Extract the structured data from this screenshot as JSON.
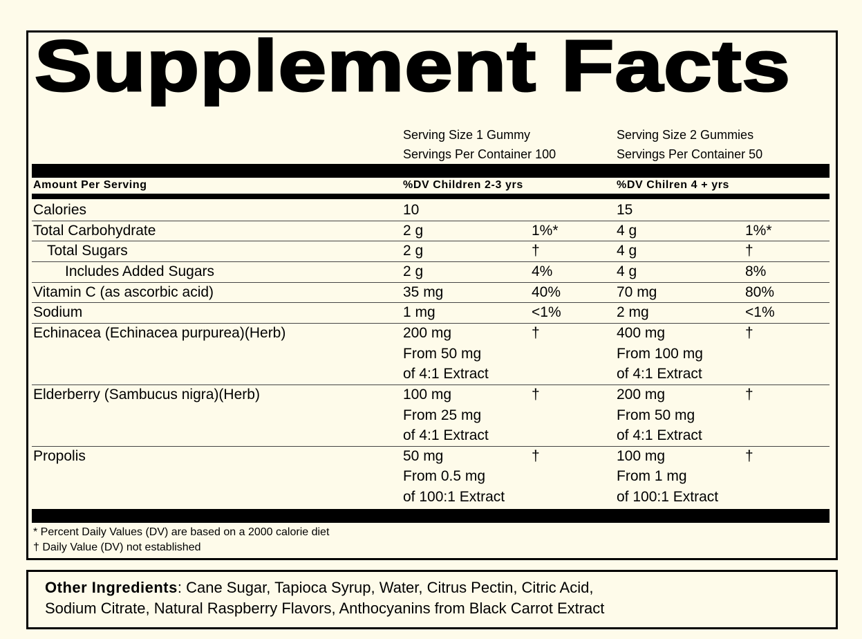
{
  "title": "Supplement Facts",
  "serving": [
    {
      "size": "Serving Size 1 Gummy",
      "per_container": "Servings Per Container 100"
    },
    {
      "size": "Serving Size 2 Gummies",
      "per_container": "Servings Per Container 50"
    }
  ],
  "header": {
    "amount": "Amount Per Serving",
    "col1": "%DV Children 2-3 yrs",
    "col2": "%DV Chilren 4 + yrs"
  },
  "rows": [
    {
      "name": "Calories",
      "c1": [
        "10"
      ],
      "c2": [
        "15"
      ]
    },
    {
      "name": "Total Carbohydrate",
      "c1": [
        "2 g"
      ],
      "dv1": "1%*",
      "c2": [
        "4 g"
      ],
      "dv2": "1%*"
    },
    {
      "name": "Total Sugars",
      "c1": [
        "2 g"
      ],
      "dv1": "†",
      "c2": [
        "4 g"
      ],
      "dv2": "†"
    },
    {
      "name": "Includes Added Sugars",
      "c1": [
        "2 g"
      ],
      "dv1": "4%",
      "c2": [
        "4 g"
      ],
      "dv2": "8%"
    },
    {
      "name": "Vitamin C (as ascorbic acid)",
      "c1": [
        "35 mg"
      ],
      "dv1": "40%",
      "c2": [
        "70 mg"
      ],
      "dv2": "80%"
    },
    {
      "name": "Sodium",
      "c1": [
        "1 mg"
      ],
      "dv1": "<1%",
      "c2": [
        "2 mg"
      ],
      "dv2": "<1%"
    },
    {
      "name": "Echinacea (Echinacea purpurea)(Herb)",
      "c1": [
        "200 mg",
        "From 50 mg",
        "of 4:1 Extract"
      ],
      "dv1": "†",
      "c2": [
        "400 mg",
        "From 100 mg",
        "of 4:1 Extract"
      ],
      "dv2": "†"
    },
    {
      "name": "Elderberry (Sambucus nigra)(Herb)",
      "c1": [
        "100 mg",
        "From 25 mg",
        "of 4:1 Extract"
      ],
      "dv1": "†",
      "c2": [
        "200 mg",
        "From 50 mg",
        "of 4:1 Extract"
      ],
      "dv2": "†"
    },
    {
      "name": "Propolis",
      "c1": [
        "50 mg",
        "From 0.5 mg",
        "of 100:1 Extract"
      ],
      "dv1": "†",
      "c2": [
        "100 mg",
        "From 1 mg",
        "of 100:1 Extract"
      ],
      "dv2": "†"
    }
  ],
  "footnotes": [
    "* Percent Daily Values (DV) are based on a 2000 calorie diet",
    "† Daily Value (DV) not established"
  ],
  "other_ingredients": {
    "label": "Other Ingredients",
    "lines": [
      ": Cane Sugar, Tapioca Syrup, Water, Citrus Pectin, Citric Acid,",
      "Sodium Citrate, Natural Raspberry Flavors, Anthocyanins from Black Carrot Extract"
    ]
  }
}
